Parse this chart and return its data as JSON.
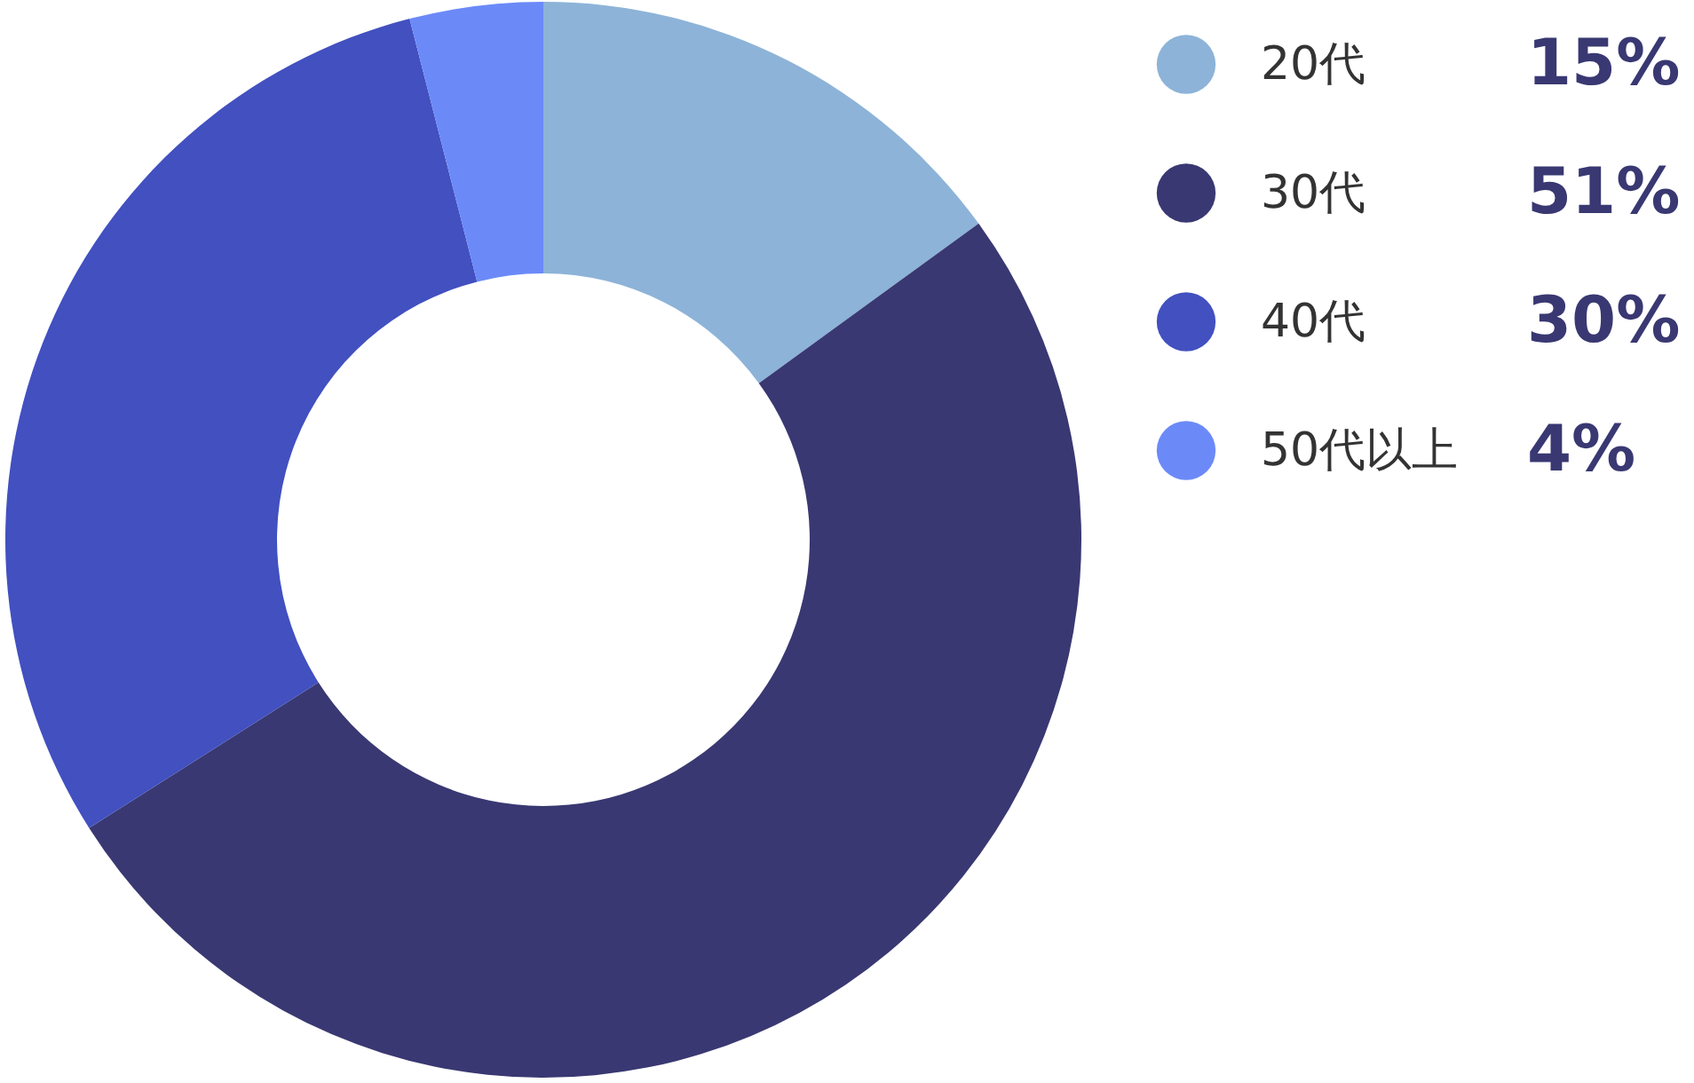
{
  "chart_data": {
    "type": "donut",
    "categories": [
      "20代",
      "30代",
      "40代",
      "50代以上"
    ],
    "values": [
      15,
      51,
      30,
      4
    ],
    "colors": [
      "#8db3d8",
      "#393872",
      "#4250c0",
      "#6b8af8"
    ],
    "value_labels": [
      "15%",
      "51%",
      "30%",
      "4%"
    ],
    "legend": "right"
  }
}
